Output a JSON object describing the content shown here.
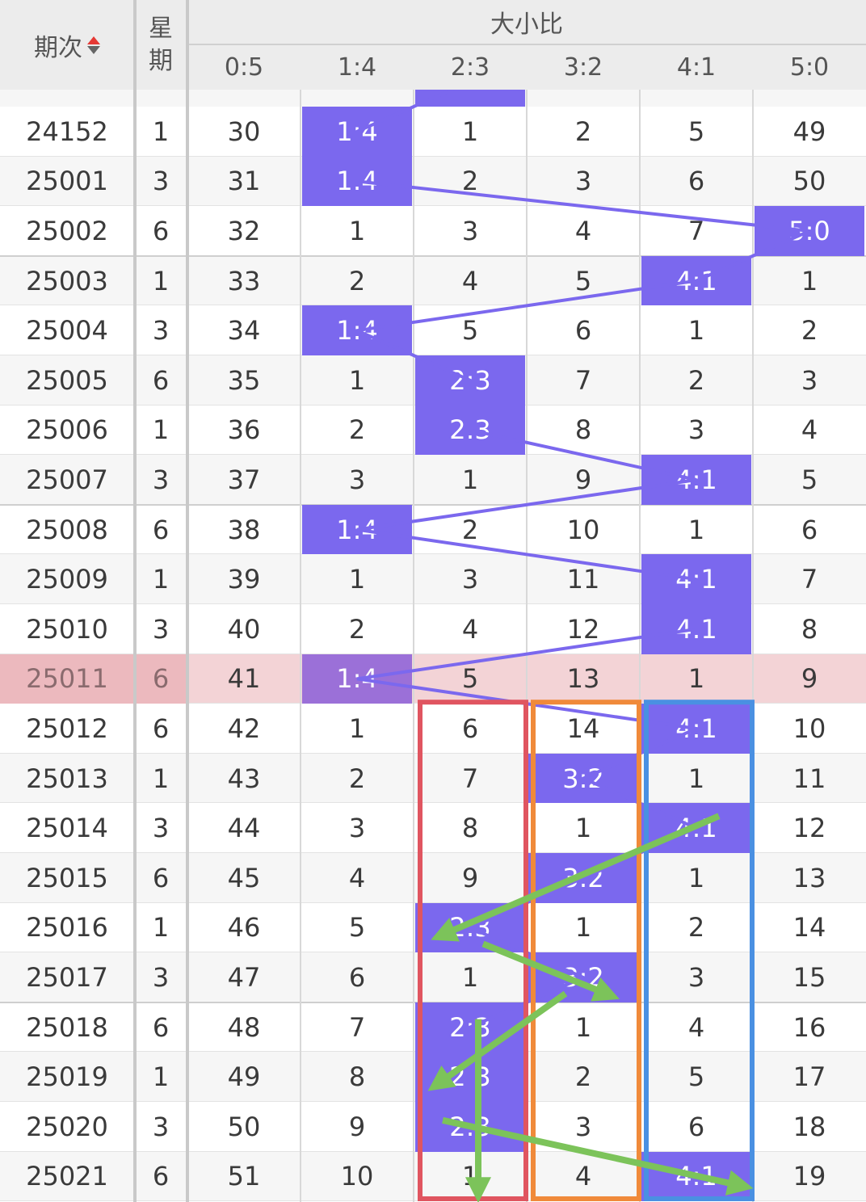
{
  "header": {
    "period_label": "期次",
    "weekday_label_1": "星",
    "weekday_label_2": "期",
    "group_label": "大小比",
    "columns": [
      "0:5",
      "1:4",
      "2:3",
      "3:2",
      "4:1",
      "5:0"
    ]
  },
  "colors": {
    "highlight": "#7b68ee",
    "current_row": "#f3d3d6",
    "red_box": "#e05560",
    "orange_box": "#f08a3a",
    "blue_box": "#4a90e2",
    "green_arrow": "#7cc35a"
  },
  "current_period": "25011",
  "rows": [
    {
      "period": "24152",
      "weekday": "1",
      "values": [
        "30",
        "1:4",
        "1",
        "2",
        "5",
        "49"
      ],
      "hit": 1
    },
    {
      "period": "25001",
      "weekday": "3",
      "values": [
        "31",
        "1:4",
        "2",
        "3",
        "6",
        "50"
      ],
      "hit": 1
    },
    {
      "period": "25002",
      "weekday": "6",
      "values": [
        "32",
        "1",
        "3",
        "4",
        "7",
        "5:0"
      ],
      "hit": 5
    },
    {
      "period": "25003",
      "weekday": "1",
      "values": [
        "33",
        "2",
        "4",
        "5",
        "4:1",
        "1"
      ],
      "hit": 4
    },
    {
      "period": "25004",
      "weekday": "3",
      "values": [
        "34",
        "1:4",
        "5",
        "6",
        "1",
        "2"
      ],
      "hit": 1
    },
    {
      "period": "25005",
      "weekday": "6",
      "values": [
        "35",
        "1",
        "2:3",
        "7",
        "2",
        "3"
      ],
      "hit": 2
    },
    {
      "period": "25006",
      "weekday": "1",
      "values": [
        "36",
        "2",
        "2:3",
        "8",
        "3",
        "4"
      ],
      "hit": 2
    },
    {
      "period": "25007",
      "weekday": "3",
      "values": [
        "37",
        "3",
        "1",
        "9",
        "4:1",
        "5"
      ],
      "hit": 4
    },
    {
      "period": "25008",
      "weekday": "6",
      "values": [
        "38",
        "1:4",
        "2",
        "10",
        "1",
        "6"
      ],
      "hit": 1
    },
    {
      "period": "25009",
      "weekday": "1",
      "values": [
        "39",
        "1",
        "3",
        "11",
        "4:1",
        "7"
      ],
      "hit": 4
    },
    {
      "period": "25010",
      "weekday": "3",
      "values": [
        "40",
        "2",
        "4",
        "12",
        "4:1",
        "8"
      ],
      "hit": 4
    },
    {
      "period": "25011",
      "weekday": "6",
      "values": [
        "41",
        "1:4",
        "5",
        "13",
        "1",
        "9"
      ],
      "hit": 1
    },
    {
      "period": "25012",
      "weekday": "6",
      "values": [
        "42",
        "1",
        "6",
        "14",
        "4:1",
        "10"
      ],
      "hit": 4
    },
    {
      "period": "25013",
      "weekday": "1",
      "values": [
        "43",
        "2",
        "7",
        "3:2",
        "1",
        "11"
      ],
      "hit": 3
    },
    {
      "period": "25014",
      "weekday": "3",
      "values": [
        "44",
        "3",
        "8",
        "1",
        "4:1",
        "12"
      ],
      "hit": 4
    },
    {
      "period": "25015",
      "weekday": "6",
      "values": [
        "45",
        "4",
        "9",
        "3:2",
        "1",
        "13"
      ],
      "hit": 3
    },
    {
      "period": "25016",
      "weekday": "1",
      "values": [
        "46",
        "5",
        "2:3",
        "1",
        "2",
        "14"
      ],
      "hit": 2
    },
    {
      "period": "25017",
      "weekday": "3",
      "values": [
        "47",
        "6",
        "1",
        "3:2",
        "3",
        "15"
      ],
      "hit": 3
    },
    {
      "period": "25018",
      "weekday": "6",
      "values": [
        "48",
        "7",
        "2:3",
        "1",
        "4",
        "16"
      ],
      "hit": 2
    },
    {
      "period": "25019",
      "weekday": "1",
      "values": [
        "49",
        "8",
        "2:3",
        "2",
        "5",
        "17"
      ],
      "hit": 2
    },
    {
      "period": "25020",
      "weekday": "3",
      "values": [
        "50",
        "9",
        "2:3",
        "3",
        "6",
        "18"
      ],
      "hit": 2
    },
    {
      "period": "25021",
      "weekday": "6",
      "values": [
        "51",
        "10",
        "1",
        "4",
        "4:1",
        "19"
      ],
      "hit": 4
    }
  ]
}
